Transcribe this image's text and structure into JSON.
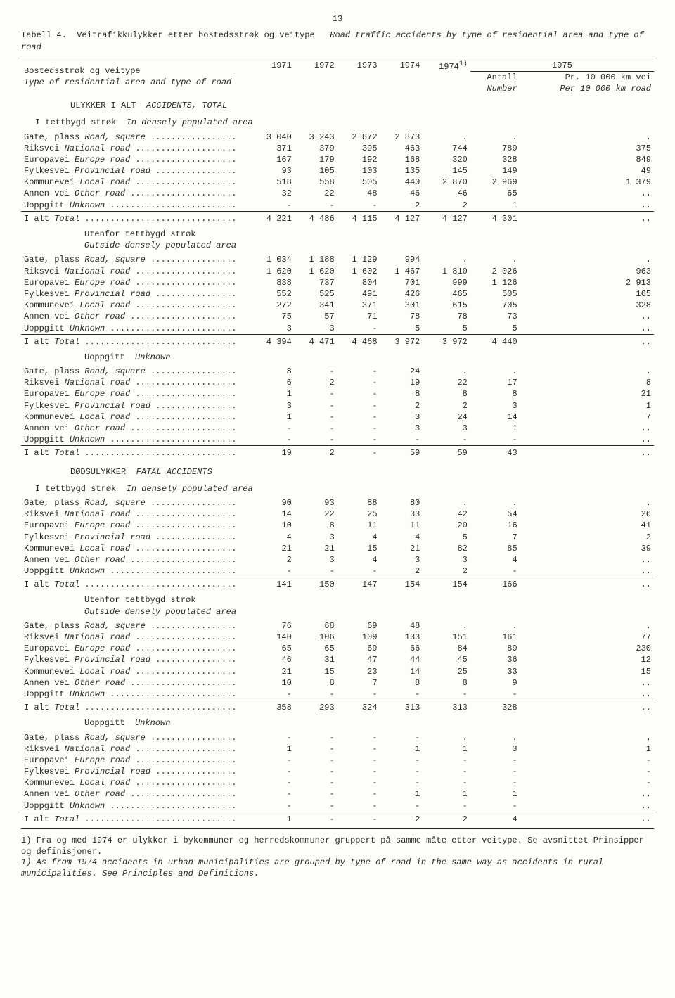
{
  "pageNumber": "13",
  "tableLabel": "Tabell 4.",
  "titleNo": "Veitrafikkulykker etter bostedsstrøk og veitype",
  "titleEn": "Road traffic accidents by type of residential area and type of road",
  "rowHeaderNo": "Bostedsstrøk og veitype",
  "rowHeaderEn": "Type of residential area and type of road",
  "yearCols": [
    "1971",
    "1972",
    "1973",
    "1974",
    "1974",
    "Antall",
    "Pr. 10 000 km vei"
  ],
  "year1975": "1975",
  "footSup": "1)",
  "numberLbl": "Number",
  "perLbl": "Per 10 000 km  road",
  "sections": {
    "accidentsTotal": {
      "no": "ULYKKER I ALT",
      "en": "ACCIDENTS, TOTAL"
    },
    "fatal": {
      "no": "DØDSULYKKER",
      "en": "FATAL ACCIDENTS"
    },
    "dense": {
      "no": "I tettbygd strøk",
      "en": "In densely populated area"
    },
    "outside": {
      "no": "Utenfor tettbygd strøk",
      "en": "Outside densely populated area"
    },
    "unknown": {
      "no": "Uoppgitt",
      "en": "Unknown"
    }
  },
  "rowLabels": [
    {
      "no": "Gate, plass",
      "en": "Road, square"
    },
    {
      "no": "Riksvei",
      "en": "National road"
    },
    {
      "no": "Europavei",
      "en": "Europe road"
    },
    {
      "no": "Fylkesvei",
      "en": "Provincial road"
    },
    {
      "no": "Kommunevei",
      "en": "Local road"
    },
    {
      "no": "Annen vei",
      "en": "Other road"
    },
    {
      "no": "Uoppgitt",
      "en": "Unknown"
    }
  ],
  "totalLbl": {
    "no": "I alt",
    "en": "Total"
  },
  "blocks": [
    [
      [
        "3 040",
        "3 243",
        "2 872",
        "2 873",
        ".",
        ".",
        "."
      ],
      [
        "371",
        "379",
        "395",
        "463",
        "744",
        "789",
        "375"
      ],
      [
        "167",
        "179",
        "192",
        "168",
        "320",
        "328",
        "849"
      ],
      [
        "93",
        "105",
        "103",
        "135",
        "145",
        "149",
        "49"
      ],
      [
        "518",
        "558",
        "505",
        "440",
        "2 870",
        "2 969",
        "1 379"
      ],
      [
        "32",
        "22",
        "48",
        "46",
        "46",
        "65",
        ".."
      ],
      [
        "-",
        "-",
        "-",
        "2",
        "2",
        "1",
        ".."
      ],
      [
        "4 221",
        "4 486",
        "4 115",
        "4 127",
        "4 127",
        "4 301",
        ".."
      ]
    ],
    [
      [
        "1 034",
        "1 188",
        "1 129",
        "994",
        ".",
        ".",
        "."
      ],
      [
        "1 620",
        "1 620",
        "1 602",
        "1 467",
        "1 810",
        "2 026",
        "963"
      ],
      [
        "838",
        "737",
        "804",
        "701",
        "999",
        "1 126",
        "2 913"
      ],
      [
        "552",
        "525",
        "491",
        "426",
        "465",
        "505",
        "165"
      ],
      [
        "272",
        "341",
        "371",
        "301",
        "615",
        "705",
        "328"
      ],
      [
        "75",
        "57",
        "71",
        "78",
        "78",
        "73",
        ".."
      ],
      [
        "3",
        "3",
        "-",
        "5",
        "5",
        "5",
        ".."
      ],
      [
        "4 394",
        "4 471",
        "4 468",
        "3 972",
        "3 972",
        "4 440",
        ".."
      ]
    ],
    [
      [
        "8",
        "-",
        "-",
        "24",
        ".",
        ".",
        "."
      ],
      [
        "6",
        "2",
        "-",
        "19",
        "22",
        "17",
        "8"
      ],
      [
        "1",
        "-",
        "-",
        "8",
        "8",
        "8",
        "21"
      ],
      [
        "3",
        "-",
        "-",
        "2",
        "2",
        "3",
        "1"
      ],
      [
        "1",
        "-",
        "-",
        "3",
        "24",
        "14",
        "7"
      ],
      [
        "-",
        "-",
        "-",
        "3",
        "3",
        "1",
        ".."
      ],
      [
        "-",
        "-",
        "-",
        "-",
        "-",
        "-",
        ".."
      ],
      [
        "19",
        "2",
        "-",
        "59",
        "59",
        "43",
        ".."
      ]
    ],
    [
      [
        "90",
        "93",
        "88",
        "80",
        ".",
        ".",
        "."
      ],
      [
        "14",
        "22",
        "25",
        "33",
        "42",
        "54",
        "26"
      ],
      [
        "10",
        "8",
        "11",
        "11",
        "20",
        "16",
        "41"
      ],
      [
        "4",
        "3",
        "4",
        "4",
        "5",
        "7",
        "2"
      ],
      [
        "21",
        "21",
        "15",
        "21",
        "82",
        "85",
        "39"
      ],
      [
        "2",
        "3",
        "4",
        "3",
        "3",
        "4",
        ".."
      ],
      [
        "-",
        "-",
        "-",
        "2",
        "2",
        "-",
        ".."
      ],
      [
        "141",
        "150",
        "147",
        "154",
        "154",
        "166",
        ".."
      ]
    ],
    [
      [
        "76",
        "68",
        "69",
        "48",
        ".",
        ".",
        "."
      ],
      [
        "140",
        "106",
        "109",
        "133",
        "151",
        "161",
        "77"
      ],
      [
        "65",
        "65",
        "69",
        "66",
        "84",
        "89",
        "230"
      ],
      [
        "46",
        "31",
        "47",
        "44",
        "45",
        "36",
        "12"
      ],
      [
        "21",
        "15",
        "23",
        "14",
        "25",
        "33",
        "15"
      ],
      [
        "10",
        "8",
        "7",
        "8",
        "8",
        "9",
        ".."
      ],
      [
        "-",
        "-",
        "-",
        "-",
        "-",
        "-",
        ".."
      ],
      [
        "358",
        "293",
        "324",
        "313",
        "313",
        "328",
        ".."
      ]
    ],
    [
      [
        "-",
        "-",
        "-",
        "-",
        ".",
        ".",
        "."
      ],
      [
        "1",
        "-",
        "-",
        "1",
        "1",
        "3",
        "1"
      ],
      [
        "-",
        "-",
        "-",
        "-",
        "-",
        "-",
        "-"
      ],
      [
        "-",
        "-",
        "-",
        "-",
        "-",
        "-",
        "-"
      ],
      [
        "-",
        "-",
        "-",
        "-",
        "-",
        "-",
        "-"
      ],
      [
        "-",
        "-",
        "-",
        "1",
        "1",
        "1",
        ".."
      ],
      [
        "-",
        "-",
        "-",
        "-",
        "-",
        "-",
        ".."
      ],
      [
        "1",
        "-",
        "-",
        "2",
        "2",
        "4",
        ".."
      ]
    ]
  ],
  "footnoteNo": "1) Fra og med 1974 er ulykker i bykommuner og herredskommuner gruppert på samme måte etter veitype. Se avsnittet Prinsipper og definisjoner.",
  "footnoteEn": "1) As from 1974 accidents in urban municipalities are grouped by type of road in the same way as accidents in rural municipalities.  See Principles and Definitions."
}
